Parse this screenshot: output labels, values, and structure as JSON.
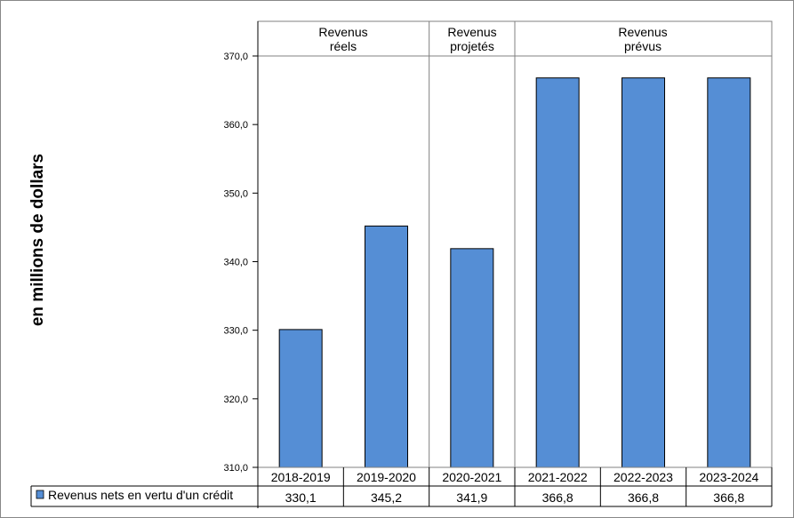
{
  "chart_data": {
    "type": "bar",
    "ylabel": "en millions  de dollars",
    "ylim": [
      310,
      370
    ],
    "y_ticks": [
      "310,0",
      "320,0",
      "330,0",
      "340,0",
      "350,0",
      "360,0",
      "370,0"
    ],
    "categories": [
      "2018-2019",
      "2019-2020",
      "2020-2021",
      "2021-2022",
      "2022-2023",
      "2023-2024"
    ],
    "series": [
      {
        "name": "Revenus nets en vertu d'un crédit",
        "values": [
          330.1,
          345.2,
          341.9,
          366.8,
          366.8,
          366.8
        ],
        "labels": [
          "330,1",
          "345,2",
          "341,9",
          "366,8",
          "366,8",
          "366,8"
        ],
        "color": "#558ed5"
      }
    ],
    "groups": [
      {
        "line1": "Revenus",
        "line2": "réels"
      },
      {
        "line1": "Revenus",
        "line2": "projetés"
      },
      {
        "line1": "Revenus",
        "line2": "prévus"
      }
    ],
    "grid": false,
    "legend": "bottom-left, data table"
  }
}
